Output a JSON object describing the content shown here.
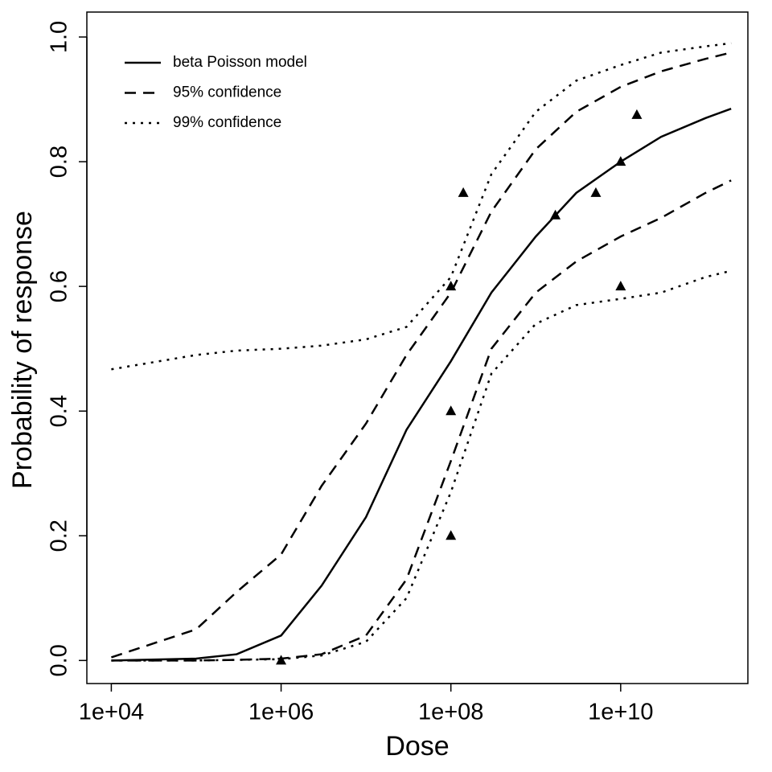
{
  "chart_data": {
    "type": "line",
    "x_label": "Dose",
    "y_label": "Probability of response",
    "xscale": "log",
    "xlim": [
      5150,
      315000000000
    ],
    "ylim": [
      -0.037,
      1.04
    ],
    "xticks": [
      {
        "value": 10000,
        "label": "1e+04"
      },
      {
        "value": 1000000,
        "label": "1e+06"
      },
      {
        "value": 100000000,
        "label": "1e+08"
      },
      {
        "value": 10000000000,
        "label": "1e+10"
      }
    ],
    "yticks": [
      {
        "value": 0,
        "label": "0.0"
      },
      {
        "value": 0.2,
        "label": "0.2"
      },
      {
        "value": 0.4,
        "label": "0.4"
      },
      {
        "value": 0.6,
        "label": "0.6"
      },
      {
        "value": 0.8,
        "label": "0.8"
      },
      {
        "value": 1,
        "label": "1.0"
      }
    ],
    "legend": "top-left",
    "x": [
      10000,
      100000,
      300000,
      1000000,
      3000000,
      10000000,
      30000000,
      100000000,
      300000000,
      1000000000,
      3000000000,
      10000000000,
      30000000000,
      100000000000,
      200000000000
    ],
    "series": [
      {
        "name": "beta Poisson model",
        "color": "#000000",
        "style": "solid",
        "values": [
          0.0,
          0.003,
          0.01,
          0.04,
          0.12,
          0.23,
          0.37,
          0.48,
          0.59,
          0.68,
          0.75,
          0.8,
          0.84,
          0.87,
          0.885
        ]
      },
      {
        "name": "95% confidence",
        "color": "#000000",
        "style": "dashed",
        "values": [
          0.005,
          0.05,
          0.11,
          0.17,
          0.28,
          0.38,
          0.49,
          0.59,
          0.72,
          0.82,
          0.88,
          0.92,
          0.945,
          0.965,
          0.975
        ]
      },
      {
        "name": "99% confidence",
        "color": "#000000",
        "style": "dotted",
        "values": [
          0.467,
          0.49,
          0.497,
          0.5,
          0.505,
          0.515,
          0.535,
          0.615,
          0.78,
          0.88,
          0.93,
          0.955,
          0.975,
          0.985,
          0.99
        ]
      }
    ],
    "extra_lines": [
      {
        "style": "dashed",
        "values": [
          0.0,
          0.0,
          0.001,
          0.003,
          0.01,
          0.04,
          0.13,
          0.32,
          0.5,
          0.59,
          0.64,
          0.68,
          0.71,
          0.75,
          0.77
        ]
      },
      {
        "style": "dotted",
        "values": [
          0.0,
          0.0,
          0.001,
          0.002,
          0.008,
          0.03,
          0.1,
          0.27,
          0.46,
          0.54,
          0.57,
          0.58,
          0.59,
          0.615,
          0.625
        ]
      }
    ],
    "points": {
      "marker": "triangle",
      "color": "#000000",
      "x": [
        1000000,
        100000000,
        100000000,
        100000000,
        140000000,
        1700000000,
        5100000000,
        10000000000,
        10000000000,
        15500000000
      ],
      "y": [
        0.0,
        0.2,
        0.4,
        0.6,
        0.75,
        0.714,
        0.75,
        0.8,
        0.6,
        0.875
      ]
    }
  }
}
